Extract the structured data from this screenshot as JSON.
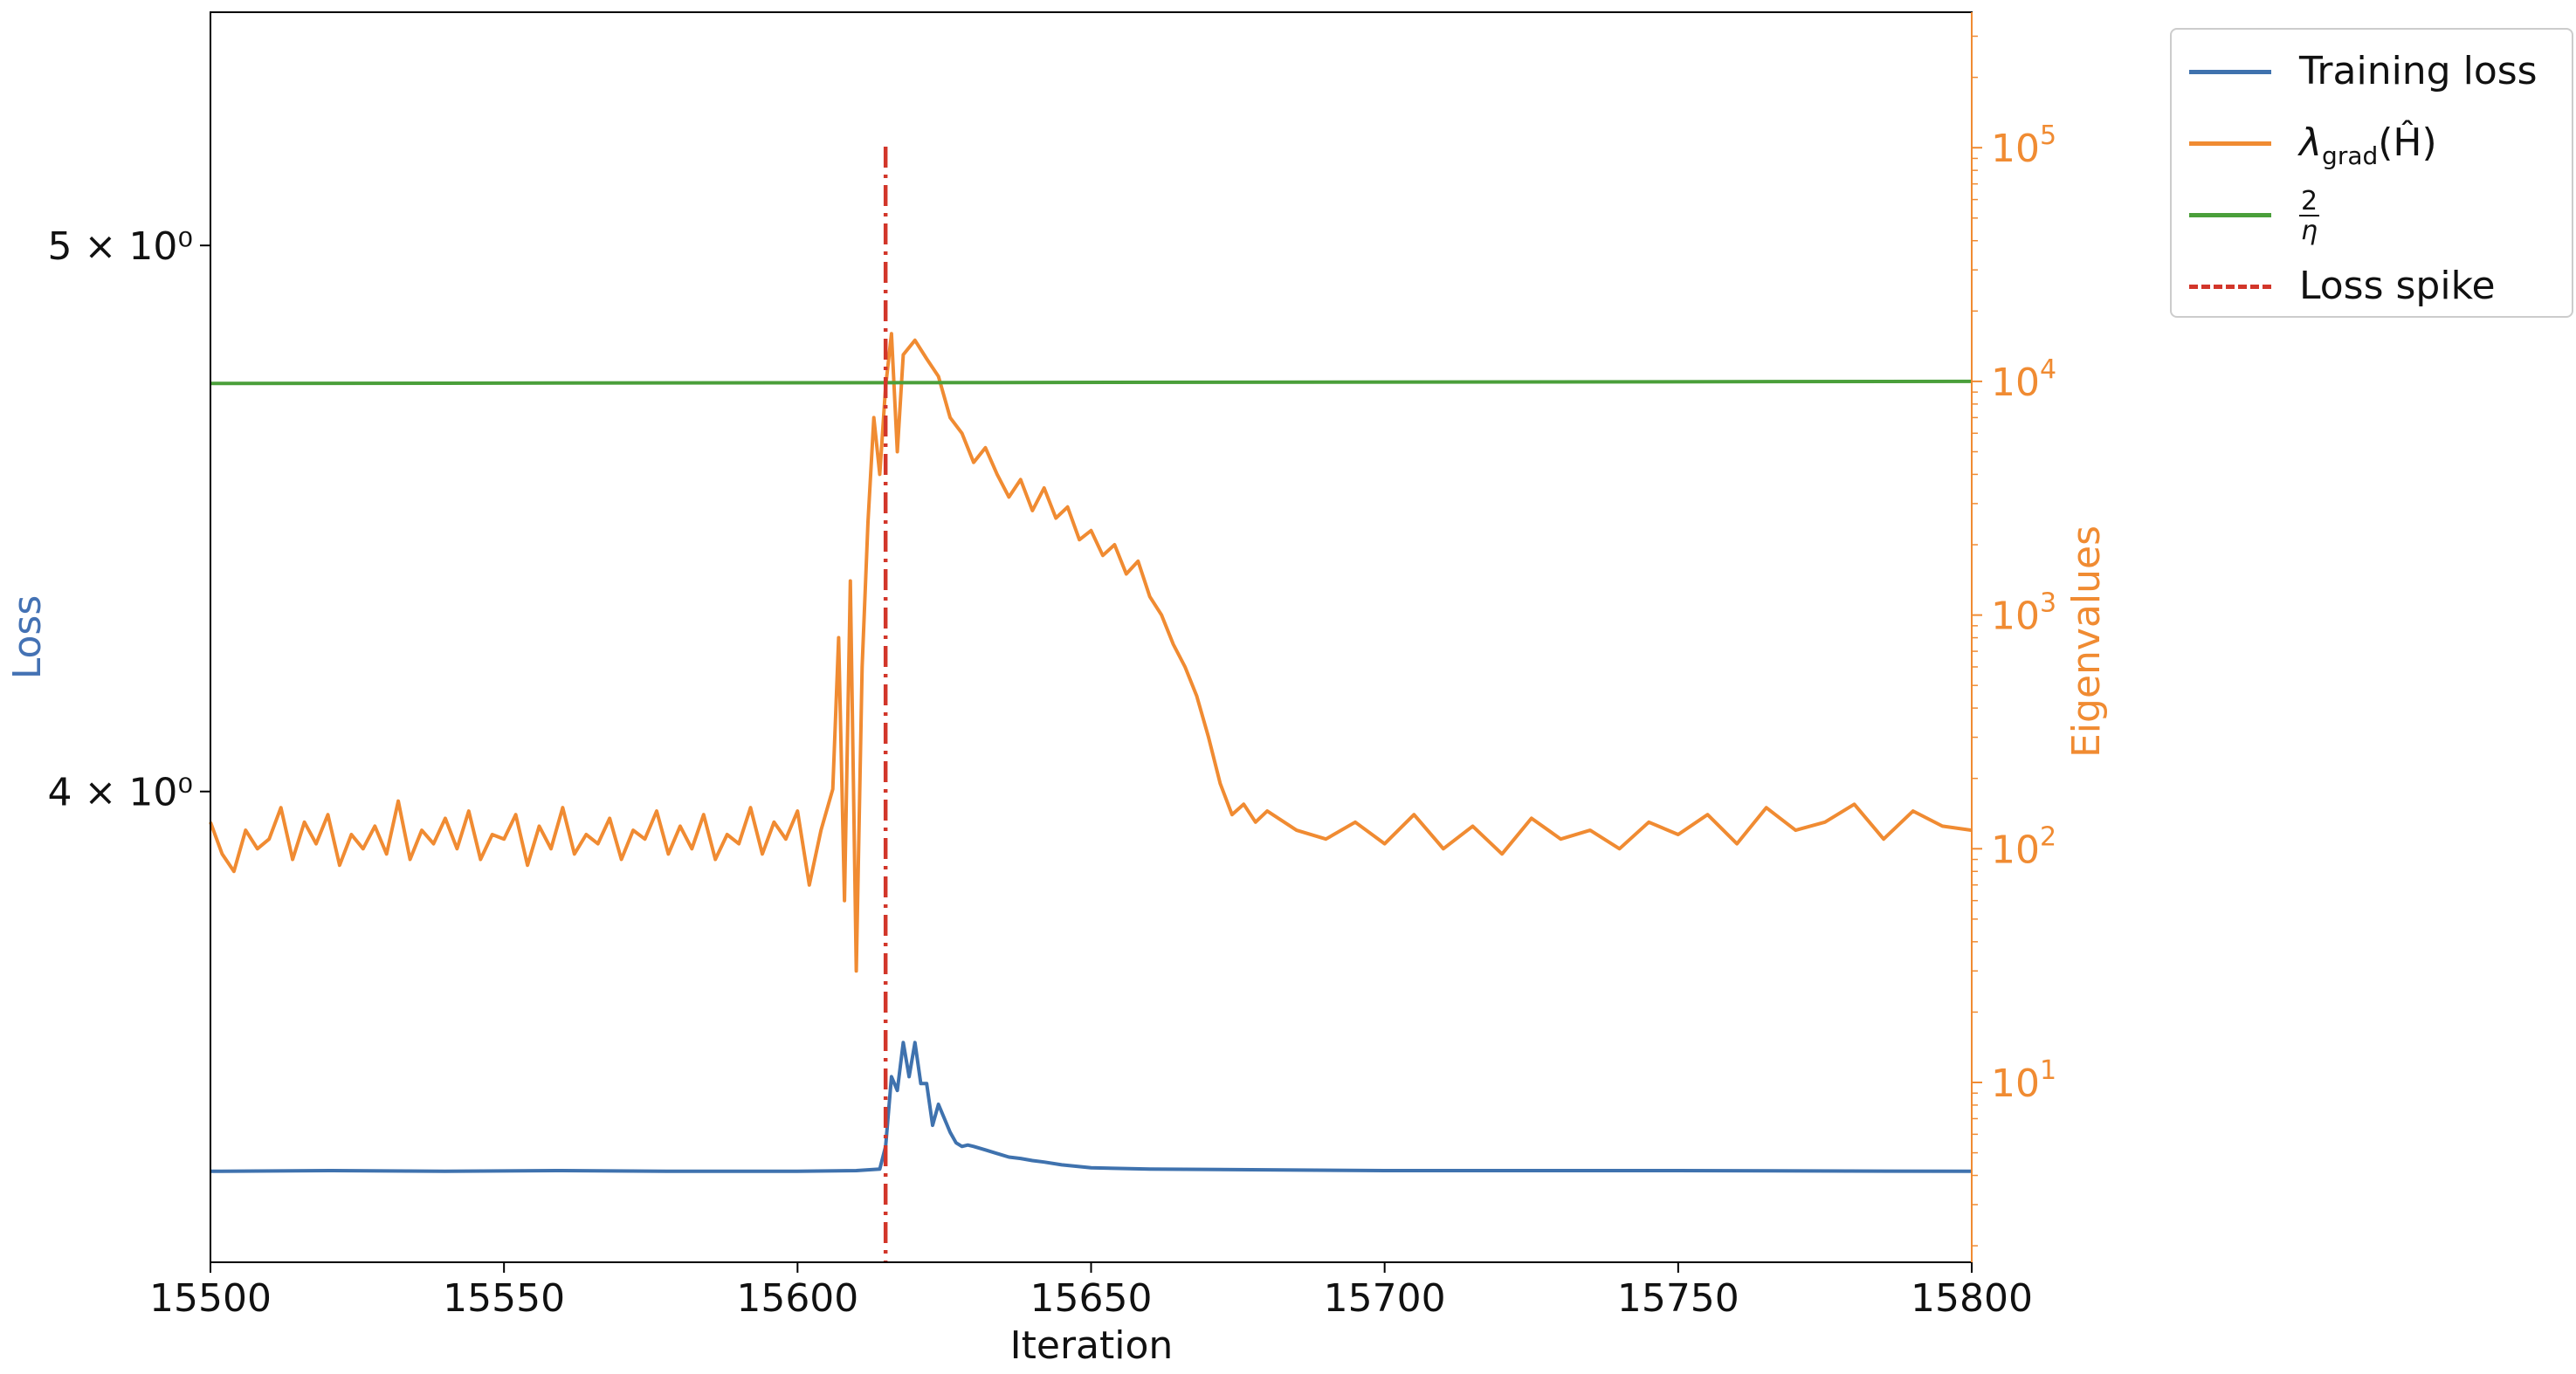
{
  "chart_data": {
    "type": "line",
    "title": "",
    "xlabel": "Iteration",
    "ylabel_left": "Loss",
    "ylabel_right": "Eigenvalues",
    "xlim": [
      15500,
      15800
    ],
    "xticks": [
      15500,
      15550,
      15600,
      15650,
      15700,
      15750,
      15800
    ],
    "left_axis": {
      "scale": "log",
      "ylim": [
        3.3,
        5.5
      ],
      "ticks": [
        {
          "value": 4,
          "label": "4 × 10⁰"
        },
        {
          "value": 5,
          "label": "5 × 10⁰"
        }
      ]
    },
    "right_axis": {
      "scale": "log",
      "ylim": [
        1.7,
        380000
      ],
      "ticks": [
        {
          "value": 10,
          "base": "10",
          "exp": "1"
        },
        {
          "value": 100,
          "base": "10",
          "exp": "2"
        },
        {
          "value": 1000,
          "base": "10",
          "exp": "3"
        },
        {
          "value": 10000,
          "base": "10",
          "exp": "4"
        },
        {
          "value": 100000,
          "base": "10",
          "exp": "5"
        }
      ]
    },
    "colors": {
      "loss": "#3f72ae",
      "eigen": "#f08b32",
      "two_over_eta": "#4a9f3a",
      "spike": "#d2362a",
      "right_axis": "#f08b32",
      "left_label": "#4472b4"
    },
    "legend_position": "outside top-right",
    "spike_x": 15615,
    "two_over_eta": {
      "axis": "right",
      "x": [
        15500,
        15800
      ],
      "values": [
        9800,
        10000
      ]
    },
    "series": [
      {
        "name": "Training loss",
        "axis": "left",
        "x": [
          15500,
          15520,
          15540,
          15560,
          15580,
          15600,
          15610,
          15614,
          15615,
          15616,
          15617,
          15618,
          15619,
          15620,
          15621,
          15622,
          15623,
          15624,
          15625,
          15626,
          15627,
          15628,
          15629,
          15630,
          15632,
          15634,
          15636,
          15638,
          15640,
          15642,
          15645,
          15650,
          15660,
          15680,
          15700,
          15750,
          15800
        ],
        "values": [
          3.425,
          3.426,
          3.425,
          3.426,
          3.425,
          3.425,
          3.426,
          3.428,
          3.46,
          3.56,
          3.54,
          3.61,
          3.56,
          3.61,
          3.55,
          3.55,
          3.49,
          3.52,
          3.5,
          3.48,
          3.465,
          3.46,
          3.462,
          3.46,
          3.455,
          3.45,
          3.445,
          3.443,
          3.44,
          3.438,
          3.434,
          3.43,
          3.428,
          3.427,
          3.426,
          3.426,
          3.425
        ]
      },
      {
        "name": "λ_grad(Ĥ)",
        "axis": "right",
        "x": [
          15500,
          15502,
          15504,
          15506,
          15508,
          15510,
          15512,
          15514,
          15516,
          15518,
          15520,
          15522,
          15524,
          15526,
          15528,
          15530,
          15532,
          15534,
          15536,
          15538,
          15540,
          15542,
          15544,
          15546,
          15548,
          15550,
          15552,
          15554,
          15556,
          15558,
          15560,
          15562,
          15564,
          15566,
          15568,
          15570,
          15572,
          15574,
          15576,
          15578,
          15580,
          15582,
          15584,
          15586,
          15588,
          15590,
          15592,
          15594,
          15596,
          15598,
          15600,
          15602,
          15604,
          15606,
          15607,
          15608,
          15609,
          15610,
          15611,
          15612,
          15613,
          15614,
          15615,
          15616,
          15617,
          15618,
          15620,
          15622,
          15624,
          15626,
          15628,
          15630,
          15632,
          15634,
          15636,
          15638,
          15640,
          15642,
          15644,
          15646,
          15648,
          15650,
          15652,
          15654,
          15656,
          15658,
          15660,
          15662,
          15664,
          15666,
          15668,
          15670,
          15672,
          15674,
          15676,
          15678,
          15680,
          15685,
          15690,
          15695,
          15700,
          15705,
          15710,
          15715,
          15720,
          15725,
          15730,
          15735,
          15740,
          15745,
          15750,
          15755,
          15760,
          15765,
          15770,
          15775,
          15780,
          15785,
          15790,
          15795,
          15800
        ],
        "values": [
          130,
          95,
          80,
          120,
          100,
          110,
          150,
          90,
          130,
          105,
          140,
          85,
          115,
          100,
          125,
          95,
          160,
          90,
          120,
          105,
          135,
          100,
          145,
          90,
          115,
          110,
          140,
          85,
          125,
          100,
          150,
          95,
          115,
          105,
          135,
          90,
          120,
          110,
          145,
          95,
          125,
          100,
          140,
          90,
          115,
          105,
          150,
          95,
          130,
          110,
          145,
          70,
          120,
          180,
          800,
          60,
          1400,
          30,
          600,
          2500,
          7000,
          4000,
          9500,
          16000,
          5000,
          13000,
          15000,
          12500,
          10500,
          7000,
          6000,
          4500,
          5200,
          4000,
          3200,
          3800,
          2800,
          3500,
          2600,
          2900,
          2100,
          2300,
          1800,
          2000,
          1500,
          1700,
          1200,
          1000,
          750,
          600,
          450,
          300,
          190,
          140,
          155,
          130,
          145,
          120,
          110,
          130,
          105,
          140,
          100,
          125,
          95,
          135,
          110,
          120,
          100,
          130,
          115,
          140,
          105,
          150,
          120,
          130,
          155,
          110,
          145,
          125,
          120
        ]
      }
    ],
    "legend": [
      {
        "key": "loss",
        "label": "Training loss"
      },
      {
        "key": "eigen",
        "label_main": "λ",
        "label_sub": "grad",
        "label_tail": "(Ĥ)"
      },
      {
        "key": "two_over_eta",
        "num": "2",
        "den": "η"
      },
      {
        "key": "spike",
        "label": "Loss spike"
      }
    ]
  }
}
